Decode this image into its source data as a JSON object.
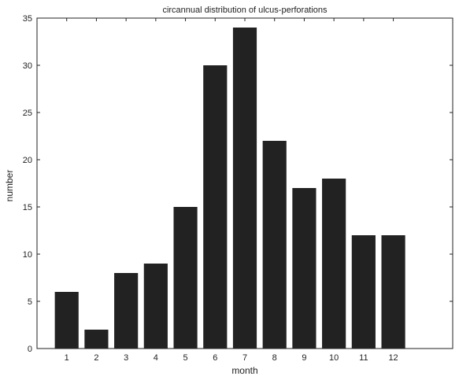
{
  "chart_data": {
    "type": "bar",
    "title": "circannual distribution of ulcus-perforations",
    "xlabel": "month",
    "ylabel": "number",
    "categories": [
      "1",
      "2",
      "3",
      "4",
      "5",
      "6",
      "7",
      "8",
      "9",
      "10",
      "11",
      "12"
    ],
    "values": [
      6,
      2,
      8,
      9,
      15,
      30,
      34,
      22,
      17,
      18,
      12,
      12
    ],
    "xlim": [
      0,
      14
    ],
    "ylim": [
      0,
      35
    ],
    "yticks": [
      "0",
      "5",
      "10",
      "15",
      "20",
      "25",
      "30",
      "35"
    ],
    "grid": false,
    "bar_color": "#222222"
  }
}
